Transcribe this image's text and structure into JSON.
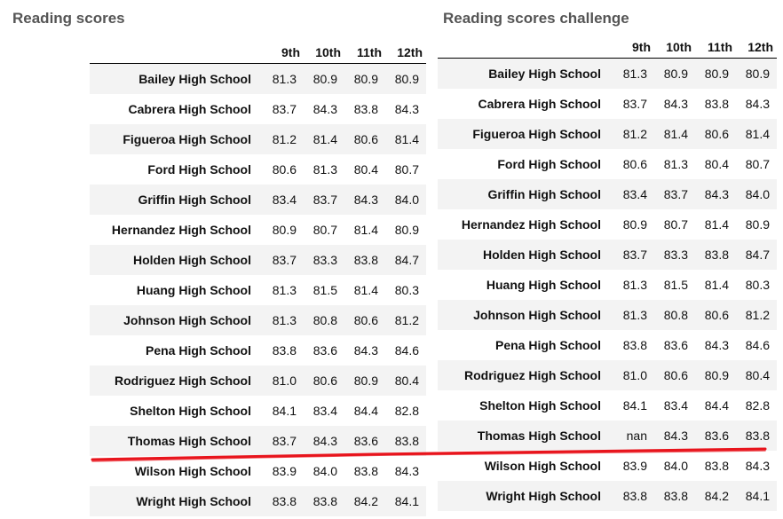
{
  "left_panel": {
    "title": "Reading scores",
    "columns": [
      "9th",
      "10th",
      "11th",
      "12th"
    ],
    "rows": [
      {
        "school": "Bailey High School",
        "values": [
          "81.3",
          "80.9",
          "80.9",
          "80.9"
        ]
      },
      {
        "school": "Cabrera High School",
        "values": [
          "83.7",
          "84.3",
          "83.8",
          "84.3"
        ]
      },
      {
        "school": "Figueroa High School",
        "values": [
          "81.2",
          "81.4",
          "80.6",
          "81.4"
        ]
      },
      {
        "school": "Ford High School",
        "values": [
          "80.6",
          "81.3",
          "80.4",
          "80.7"
        ]
      },
      {
        "school": "Griffin High School",
        "values": [
          "83.4",
          "83.7",
          "84.3",
          "84.0"
        ]
      },
      {
        "school": "Hernandez High School",
        "values": [
          "80.9",
          "80.7",
          "81.4",
          "80.9"
        ]
      },
      {
        "school": "Holden High School",
        "values": [
          "83.7",
          "83.3",
          "83.8",
          "84.7"
        ]
      },
      {
        "school": "Huang High School",
        "values": [
          "81.3",
          "81.5",
          "81.4",
          "80.3"
        ]
      },
      {
        "school": "Johnson High School",
        "values": [
          "81.3",
          "80.8",
          "80.6",
          "81.2"
        ]
      },
      {
        "school": "Pena High School",
        "values": [
          "83.8",
          "83.6",
          "84.3",
          "84.6"
        ]
      },
      {
        "school": "Rodriguez High School",
        "values": [
          "81.0",
          "80.6",
          "80.9",
          "80.4"
        ]
      },
      {
        "school": "Shelton High School",
        "values": [
          "84.1",
          "83.4",
          "84.4",
          "82.8"
        ]
      },
      {
        "school": "Thomas High School",
        "values": [
          "83.7",
          "84.3",
          "83.6",
          "83.8"
        ]
      },
      {
        "school": "Wilson High School",
        "values": [
          "83.9",
          "84.0",
          "83.8",
          "84.3"
        ]
      },
      {
        "school": "Wright High School",
        "values": [
          "83.8",
          "83.8",
          "84.2",
          "84.1"
        ]
      }
    ]
  },
  "right_panel": {
    "title": "Reading scores challenge",
    "columns": [
      "9th",
      "10th",
      "11th",
      "12th"
    ],
    "rows": [
      {
        "school": "Bailey High School",
        "values": [
          "81.3",
          "80.9",
          "80.9",
          "80.9"
        ]
      },
      {
        "school": "Cabrera High School",
        "values": [
          "83.7",
          "84.3",
          "83.8",
          "84.3"
        ]
      },
      {
        "school": "Figueroa High School",
        "values": [
          "81.2",
          "81.4",
          "80.6",
          "81.4"
        ]
      },
      {
        "school": "Ford High School",
        "values": [
          "80.6",
          "81.3",
          "80.4",
          "80.7"
        ]
      },
      {
        "school": "Griffin High School",
        "values": [
          "83.4",
          "83.7",
          "84.3",
          "84.0"
        ]
      },
      {
        "school": "Hernandez High School",
        "values": [
          "80.9",
          "80.7",
          "81.4",
          "80.9"
        ]
      },
      {
        "school": "Holden High School",
        "values": [
          "83.7",
          "83.3",
          "83.8",
          "84.7"
        ]
      },
      {
        "school": "Huang High School",
        "values": [
          "81.3",
          "81.5",
          "81.4",
          "80.3"
        ]
      },
      {
        "school": "Johnson High School",
        "values": [
          "81.3",
          "80.8",
          "80.6",
          "81.2"
        ]
      },
      {
        "school": "Pena High School",
        "values": [
          "83.8",
          "83.6",
          "84.3",
          "84.6"
        ]
      },
      {
        "school": "Rodriguez High School",
        "values": [
          "81.0",
          "80.6",
          "80.9",
          "80.4"
        ]
      },
      {
        "school": "Shelton High School",
        "values": [
          "84.1",
          "83.4",
          "84.4",
          "82.8"
        ]
      },
      {
        "school": "Thomas High School",
        "values": [
          "nan",
          "84.3",
          "83.6",
          "83.8"
        ]
      },
      {
        "school": "Wilson High School",
        "values": [
          "83.9",
          "84.0",
          "83.8",
          "84.3"
        ]
      },
      {
        "school": "Wright High School",
        "values": [
          "83.8",
          "83.8",
          "84.2",
          "84.1"
        ]
      }
    ]
  },
  "colors": {
    "title_gray": "#555555",
    "row_stripe": "#f3f3f3",
    "annotation_red": "#e8141c"
  }
}
